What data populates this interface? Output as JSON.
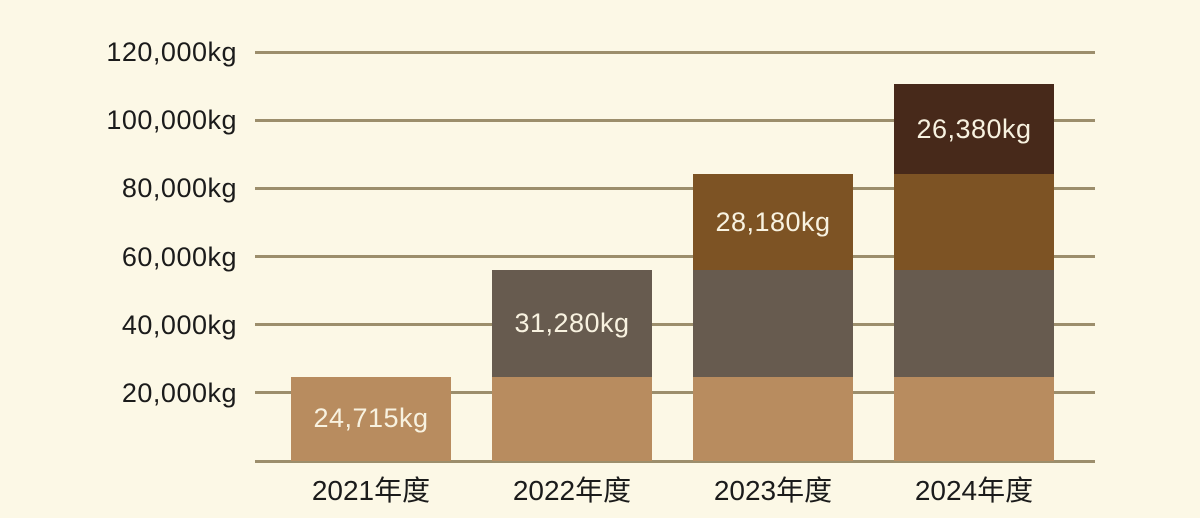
{
  "page": {
    "background_color": "#fcf8e6",
    "grid_color": "#9c8e6c",
    "axis_text_color": "#1b1b1b",
    "bar_label_text_color": "#f8f2e0"
  },
  "chart_data": {
    "type": "bar",
    "stacked": true,
    "subtype": "cumulative-stacked-column",
    "title": "",
    "xlabel": "",
    "ylabel": "",
    "unit": "kg",
    "grid": true,
    "legend_position": "none",
    "ylim": [
      0,
      130000
    ],
    "categories": [
      "2021年度",
      "2022年度",
      "2023年度",
      "2024年度"
    ],
    "yticks": [
      {
        "value": 20000,
        "label": "20,000kg"
      },
      {
        "value": 40000,
        "label": "40,000kg"
      },
      {
        "value": 60000,
        "label": "60,000kg"
      },
      {
        "value": 80000,
        "label": "80,000kg"
      },
      {
        "value": 100000,
        "label": "100,000kg"
      },
      {
        "value": 120000,
        "label": "120,000kg"
      }
    ],
    "series": [
      {
        "name": "2021年度",
        "value": 24715,
        "label": "24,715kg",
        "color": "#b88c5f"
      },
      {
        "name": "2022年度",
        "value": 31280,
        "label": "31,280kg",
        "color": "#675b4f"
      },
      {
        "name": "2023年度",
        "value": 28180,
        "label": "28,180kg",
        "color": "#7d5324"
      },
      {
        "name": "2024年度",
        "value": 26380,
        "label": "26,380kg",
        "color": "#47291a"
      }
    ],
    "bars": [
      {
        "category": "2021年度",
        "segment_series": [
          0
        ],
        "labeled_segment": 0,
        "total": 24715
      },
      {
        "category": "2022年度",
        "segment_series": [
          0,
          1
        ],
        "labeled_segment": 1,
        "total": 55995
      },
      {
        "category": "2023年度",
        "segment_series": [
          0,
          1,
          2
        ],
        "labeled_segment": 2,
        "total": 84175
      },
      {
        "category": "2024年度",
        "segment_series": [
          0,
          1,
          2,
          3
        ],
        "labeled_segment": 3,
        "total": 110555
      }
    ]
  }
}
